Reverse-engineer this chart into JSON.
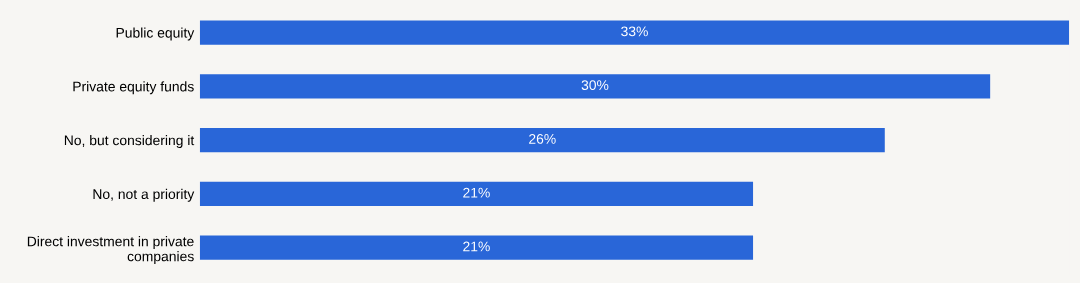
{
  "chart_data": {
    "type": "bar",
    "orientation": "horizontal",
    "categories": [
      "Public equity",
      "Private equity funds",
      "No, but considering it",
      "No, not a priority",
      "Direct investment in private\ncompanies"
    ],
    "values": [
      33,
      30,
      26,
      21,
      21
    ],
    "value_labels": [
      "33%",
      "30%",
      "26%",
      "21%",
      "21%"
    ],
    "color": "#2966d8",
    "xlim": [
      0,
      33
    ],
    "tick_labels": "y",
    "grid": false,
    "legend": false
  }
}
